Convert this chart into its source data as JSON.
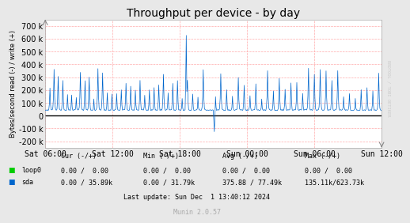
{
  "title": "Throughput per device - by day",
  "ylabel": "Bytes/second read (-) / write (+)",
  "ylim": [
    -250000,
    750000
  ],
  "yticks": [
    -200000,
    -100000,
    0,
    100000,
    200000,
    300000,
    400000,
    500000,
    600000,
    700000
  ],
  "ytick_labels": [
    "-200 k",
    "-100 k",
    "0",
    "100 k",
    "200 k",
    "300 k",
    "400 k",
    "500 k",
    "600 k",
    "700 k"
  ],
  "xtick_labels": [
    "Sat 06:00",
    "Sat 12:00",
    "Sat 18:00",
    "Sun 00:00",
    "Sun 06:00",
    "Sun 12:00"
  ],
  "bg_color": "#e8e8e8",
  "plot_bg_color": "#ffffff",
  "grid_color": "#ffaaaa",
  "line_color": "#0066cc",
  "zero_line_color": "#000000",
  "legend_items": [
    {
      "label": "loop0",
      "color": "#00cc00"
    },
    {
      "label": "sda",
      "color": "#0066cc"
    }
  ],
  "footer": "Last update: Sun Dec  1 13:40:12 2024",
  "munin_label": "Munin 2.0.57",
  "rrdtool_label": "RRDTOOL / TOBI OETIKER",
  "title_fontsize": 10,
  "axis_fontsize": 7,
  "legend_fontsize": 6,
  "footer_fontsize": 6
}
